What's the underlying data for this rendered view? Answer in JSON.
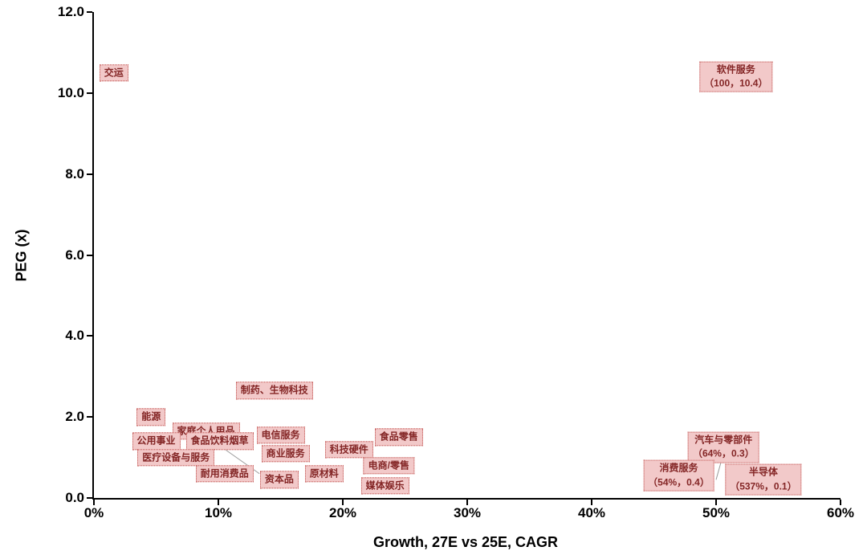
{
  "chart_data": {
    "type": "scatter",
    "title": "",
    "xlabel": "Growth, 27E vs 25E, CAGR",
    "ylabel": "PEG (x)",
    "xlim": [
      0,
      60
    ],
    "ylim": [
      0,
      12
    ],
    "grid": false,
    "x_tick_values": [
      0,
      10,
      20,
      30,
      40,
      50,
      60
    ],
    "x_tick_labels": [
      "0%",
      "10%",
      "20%",
      "30%",
      "40%",
      "50%",
      "60%"
    ],
    "y_tick_values": [
      0,
      2,
      4,
      6,
      8,
      10,
      12
    ],
    "y_tick_labels": [
      "0.0",
      "2.0",
      "4.0",
      "6.0",
      "8.0",
      "10.0",
      "12.0"
    ],
    "label_style": {
      "bg": "#f2c9c9",
      "border": "#c0504d",
      "text": "#842626"
    },
    "points": [
      {
        "label": "交运",
        "x": 1.6,
        "y": 10.5
      },
      {
        "label": "软件服务",
        "sublabel": "（100，10.4）",
        "x": 51.6,
        "y": 10.4
      },
      {
        "label": "制药、生物科技",
        "x": 14.5,
        "y": 2.65
      },
      {
        "label": "能源",
        "x": 4.6,
        "y": 2.0
      },
      {
        "label": "家庭个人用品",
        "x": 9.0,
        "y": 1.65
      },
      {
        "label": "公用事业",
        "x": 5.0,
        "y": 1.4
      },
      {
        "label": "食品饮料烟草",
        "x": 10.1,
        "y": 1.4
      },
      {
        "label": "电信服务",
        "x": 15.0,
        "y": 1.55
      },
      {
        "label": "医疗设备与服务",
        "x": 6.6,
        "y": 1.0
      },
      {
        "label": "商业服务",
        "x": 15.4,
        "y": 1.1
      },
      {
        "label": "科技硬件",
        "x": 20.5,
        "y": 1.2
      },
      {
        "label": "食品零售",
        "x": 24.5,
        "y": 1.5
      },
      {
        "label": "耐用消费品",
        "x": 10.5,
        "y": 0.6
      },
      {
        "label": "资本品",
        "x": 14.9,
        "y": 0.45
      },
      {
        "label": "原材料",
        "x": 18.5,
        "y": 0.6
      },
      {
        "label": "电商/零售",
        "x": 23.7,
        "y": 0.8
      },
      {
        "label": "媒体娱乐",
        "x": 23.4,
        "y": 0.3
      },
      {
        "label": "汽车与零部件",
        "sublabel": "（64%，0.3）",
        "x": 50.6,
        "y": 1.25
      },
      {
        "label": "消费服务",
        "sublabel": "（54%，0.4）",
        "x": 47.0,
        "y": 0.55
      },
      {
        "label": "半导体",
        "sublabel": "（537%，0.1）",
        "x": 53.8,
        "y": 0.45
      }
    ],
    "leaders": [
      [
        10.3,
        1.25,
        13.3,
        0.6
      ],
      [
        50.5,
        1.0,
        50.0,
        0.45
      ],
      [
        47.6,
        0.4,
        49.3,
        0.2
      ]
    ]
  }
}
